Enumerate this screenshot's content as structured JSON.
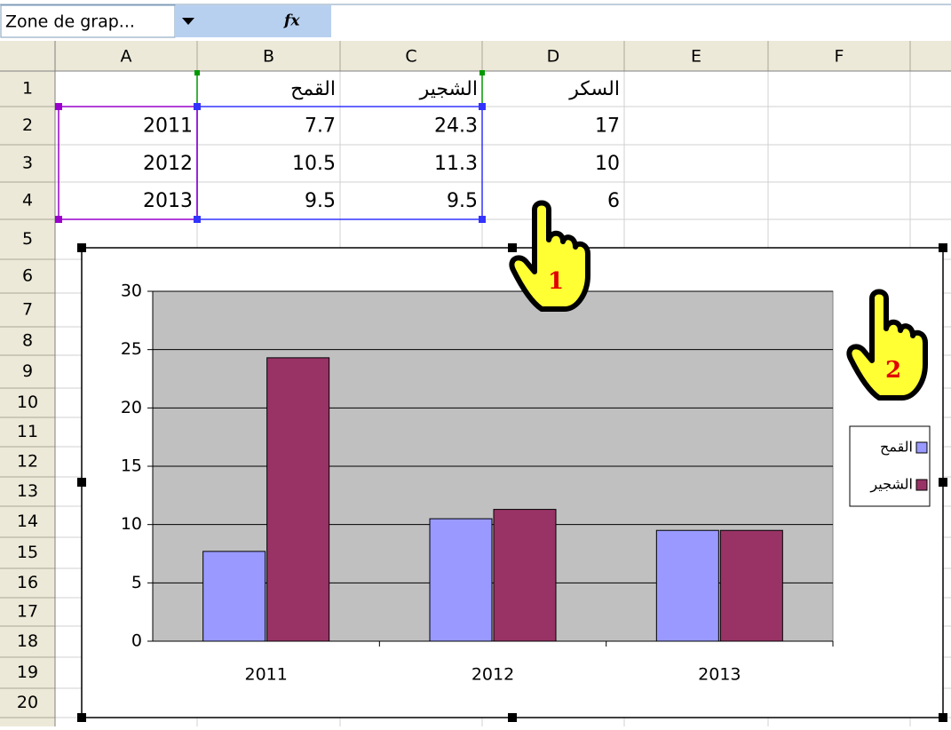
{
  "sheet": {
    "name_box": "Zone de grap...",
    "fx_label": "fx",
    "columns": [
      "A",
      "B",
      "C",
      "D",
      "E",
      "F"
    ],
    "row_numbers": [
      1,
      2,
      3,
      4,
      5,
      6,
      7,
      8,
      9,
      10,
      11,
      12,
      13,
      14,
      15,
      16,
      17,
      18,
      19,
      20
    ],
    "cells": [
      [
        null,
        "القمح",
        "الشجير",
        "السكر"
      ],
      [
        2011,
        7.7,
        24.3,
        17
      ],
      [
        2012,
        10.5,
        11.3,
        10
      ],
      [
        2013,
        9.5,
        9.5,
        6
      ]
    ]
  },
  "annotations": [
    "1",
    "2"
  ],
  "chart_data": {
    "type": "bar",
    "categories": [
      "2011",
      "2012",
      "2013"
    ],
    "series": [
      {
        "name": "القمح",
        "color": "#9999ff",
        "values": [
          7.7,
          10.5,
          9.5
        ]
      },
      {
        "name": "الشجير",
        "color": "#993366",
        "values": [
          24.3,
          11.3,
          9.5
        ]
      }
    ],
    "ylim": [
      0,
      30
    ],
    "yticks": [
      0,
      5,
      10,
      15,
      20,
      25,
      30
    ],
    "grid": true,
    "plot_color": "#c0c0c0",
    "legend": "right"
  }
}
